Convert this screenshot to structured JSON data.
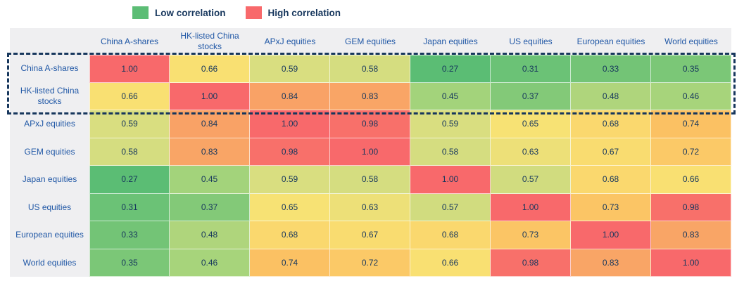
{
  "legend": {
    "items": [
      {
        "label": "Low correlation",
        "color": "#5CBD75"
      },
      {
        "label": "High correlation",
        "color": "#F8696B"
      }
    ]
  },
  "chart_data": {
    "type": "heatmap",
    "title": "",
    "legend": [
      "Low correlation",
      "High correlation"
    ],
    "columns": [
      "China A-shares",
      "HK-listed China stocks",
      "APxJ equities",
      "GEM equities",
      "Japan equities",
      "US equities",
      "European equities",
      "World equities"
    ],
    "rows": [
      "China A-shares",
      "HK-listed China stocks",
      "APxJ equities",
      "GEM equities",
      "Japan equities",
      "US equities",
      "European equities",
      "World equities"
    ],
    "matrix": [
      [
        1.0,
        0.66,
        0.59,
        0.58,
        0.27,
        0.31,
        0.33,
        0.35
      ],
      [
        0.66,
        1.0,
        0.84,
        0.83,
        0.45,
        0.37,
        0.48,
        0.46
      ],
      [
        0.59,
        0.84,
        1.0,
        0.98,
        0.59,
        0.65,
        0.68,
        0.74
      ],
      [
        0.58,
        0.83,
        0.98,
        1.0,
        0.58,
        0.63,
        0.67,
        0.72
      ],
      [
        0.27,
        0.45,
        0.59,
        0.58,
        1.0,
        0.57,
        0.68,
        0.66
      ],
      [
        0.31,
        0.37,
        0.65,
        0.63,
        0.57,
        1.0,
        0.73,
        0.98
      ],
      [
        0.33,
        0.48,
        0.68,
        0.67,
        0.68,
        0.73,
        1.0,
        0.83
      ],
      [
        0.35,
        0.46,
        0.74,
        0.72,
        0.66,
        0.98,
        0.83,
        1.0
      ]
    ],
    "value_format": "0.00",
    "value_range": [
      0.27,
      1.0
    ],
    "highlighted_rows": [
      "China A-shares",
      "HK-listed China stocks"
    ],
    "color_scale": {
      "stops": [
        [
          0.27,
          "#5BBD74"
        ],
        [
          0.45,
          "#A3D37B"
        ],
        [
          0.59,
          "#D9DE80"
        ],
        [
          0.655,
          "#F9E273"
        ],
        [
          0.74,
          "#FBC163"
        ],
        [
          0.84,
          "#F9A266"
        ],
        [
          1.0,
          "#F8696B"
        ]
      ]
    }
  },
  "colors": {
    "value_text": "#17375D",
    "label_text": "#2158A6",
    "header_bg": "#EFEFF1",
    "highlight_border": "#17375D",
    "page_bg": "#FFFFFF"
  }
}
